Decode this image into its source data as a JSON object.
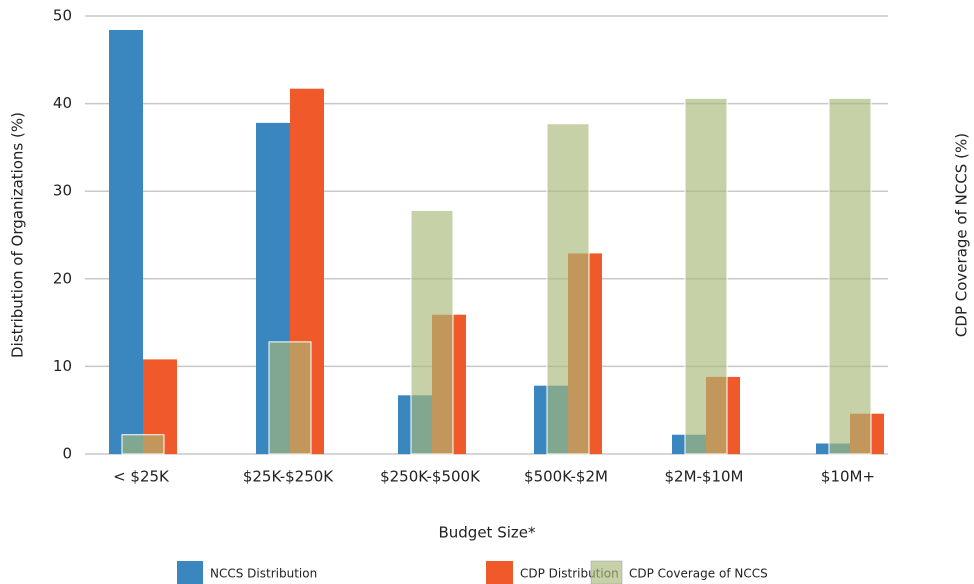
{
  "chart_data": {
    "type": "bar",
    "x_label": "Budget Size*",
    "y_label": "Distribution of Organizations (%)",
    "y2_label": "CDP Coverage of NCCS (%)",
    "categories": [
      "< $25K",
      "$25K-$250K",
      "$250K-$500K",
      "$500K-$2M",
      "$2M-$10M",
      "$10M+"
    ],
    "series": [
      {
        "name": "NCCS Distribution",
        "color": "#3a87c0",
        "values": [
          48.4,
          37.8,
          6.7,
          7.8,
          2.2,
          1.2
        ]
      },
      {
        "name": "CDP Distribution",
        "color": "#f05a2a",
        "values": [
          10.8,
          41.7,
          15.9,
          22.9,
          8.8,
          4.6
        ]
      },
      {
        "name": "CDP Coverage of NCCS",
        "color": "#a9b878",
        "axis": "y2",
        "values": [
          2.2,
          12.8,
          27.8,
          37.7,
          40.6,
          40.6
        ]
      }
    ],
    "ylim": [
      0,
      50
    ],
    "yticks": [
      0,
      10,
      20,
      30,
      40,
      50
    ],
    "y2lim": [
      0,
      50
    ],
    "grid": true,
    "legend": "bottom"
  }
}
